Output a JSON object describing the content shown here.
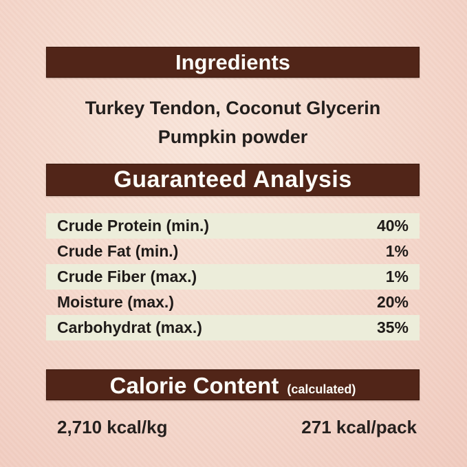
{
  "label": {
    "ingredients": {
      "title": "Ingredients",
      "line1": "Turkey Tendon, Coconut Glycerin",
      "line2": "Pumpkin powder"
    },
    "guaranteed_analysis": {
      "title": "Guaranteed Analysis",
      "rows": [
        {
          "name": "Crude Protein (min.)",
          "value": "40%"
        },
        {
          "name": "Crude Fat (min.)",
          "value": "1%"
        },
        {
          "name": "Crude Fiber (max.)",
          "value": "1%"
        },
        {
          "name": "Moisture (max.)",
          "value": "20%"
        },
        {
          "name": "Carbohydrat (max.)",
          "value": "35%"
        }
      ]
    },
    "calorie_content": {
      "title": "Calorie Content",
      "subtitle": "(calculated)",
      "per_kg": "2,710 kcal/kg",
      "per_pack": "271 kcal/pack"
    },
    "colors": {
      "banner_background": "#512518",
      "banner_text": "#fdfdf8",
      "band_background": "#ecedda",
      "page_background_center": "#f8e3d8",
      "page_background_edge": "#f0cbbf",
      "body_text": "#221e1c"
    }
  }
}
